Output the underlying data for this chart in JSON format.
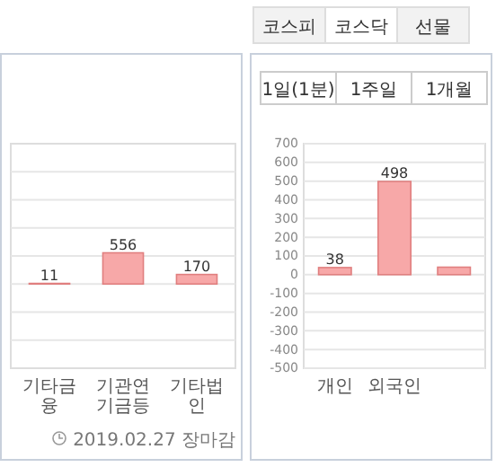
{
  "chart_data": [
    {
      "type": "bar",
      "categories": [
        "기타금융",
        "기관연기금등",
        "기타법인"
      ],
      "values": [
        11,
        556,
        170
      ],
      "color": "#f7a8a8",
      "data_labels": true,
      "ylim": [
        -1500,
        2500
      ],
      "yticks": [
        {
          "value": -1000,
          "label": null
        },
        {
          "value": -500,
          "label": null
        },
        {
          "value": 0,
          "label": null
        },
        {
          "value": 500,
          "label": null
        },
        {
          "value": 1000,
          "label": null
        },
        {
          "value": 1500,
          "label": null
        },
        {
          "value": 2000,
          "label": null
        }
      ],
      "grid": "y",
      "tick_labels": "x",
      "annotations": [
        "2019.02.27 장마감"
      ]
    },
    {
      "type": "bar",
      "categories": [
        "개인",
        "외국인",
        null
      ],
      "values": [
        38,
        498,
        40
      ],
      "color": "#f7a8a8",
      "value_labels": [
        "38",
        "498",
        null
      ],
      "ylim": [
        -500,
        700
      ],
      "yticks": [
        -500,
        -400,
        -300,
        -200,
        -100,
        0,
        100,
        200,
        300,
        400,
        500,
        600,
        700
      ],
      "grid": "y",
      "annotations": [
        "코스피",
        "코스닥",
        "선물",
        "1일(1분)",
        "1주일",
        "1개월"
      ]
    }
  ]
}
